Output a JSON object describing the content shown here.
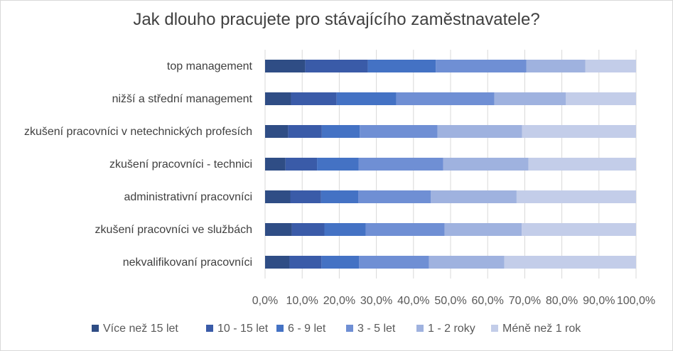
{
  "chart_data": {
    "type": "bar",
    "orientation": "horizontal",
    "stacked": "100%",
    "title": "Jak dlouho pracujete pro stávajícího zaměstnavatele?",
    "categories": [
      "top management",
      "nižší a střední management",
      "zkušení pracovníci v netechnických profesích",
      "zkušení pracovníci - technici",
      "administrativní pracovníci",
      "zkušení  pracovníci ve službách",
      "nekvalifikovaní pracovníci"
    ],
    "series": [
      {
        "name": "Více než 15 let",
        "color": "#2f4d85",
        "values": [
          10.8,
          7.0,
          6.2,
          5.5,
          6.8,
          7.2,
          6.6
        ]
      },
      {
        "name": "10 - 15 let",
        "color": "#3a5ba8",
        "values": [
          16.9,
          12.3,
          9.1,
          8.5,
          8.3,
          8.8,
          8.6
        ]
      },
      {
        "name": "6 - 9 let",
        "color": "#4472c4",
        "values": [
          18.3,
          16.1,
          10.2,
          11.2,
          10.0,
          11.1,
          10.1
        ]
      },
      {
        "name": "3 - 5 let",
        "color": "#6f8fd4",
        "values": [
          24.4,
          26.4,
          21.0,
          22.8,
          19.6,
          21.3,
          18.9
        ]
      },
      {
        "name": "1 - 2 roky",
        "color": "#9fb2df",
        "values": [
          15.9,
          19.3,
          22.8,
          23.0,
          23.1,
          20.8,
          20.3
        ]
      },
      {
        "name": "Méně než 1 rok",
        "color": "#c3cde9",
        "values": [
          13.7,
          18.9,
          30.7,
          29.0,
          32.2,
          30.8,
          35.5
        ]
      }
    ],
    "xlim": [
      0,
      100
    ],
    "xticks": [
      "0,0%",
      "10,0%",
      "20,0%",
      "30,0%",
      "40,0%",
      "50,0%",
      "60,0%",
      "70,0%",
      "80,0%",
      "90,0%",
      "100,0%"
    ],
    "grid": "vertical",
    "legend_position": "bottom"
  }
}
